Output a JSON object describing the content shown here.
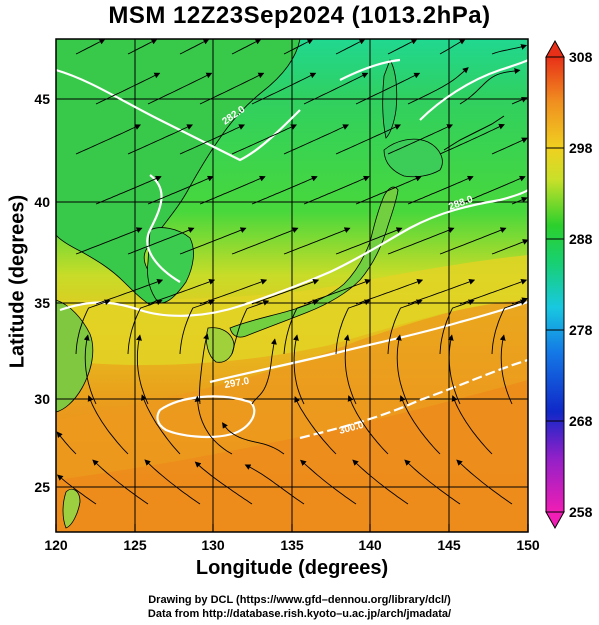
{
  "title": "MSM 12Z23Sep2024 (1013.2hPa)",
  "x_axis": {
    "label": "Longitude (degrees)",
    "ticks": [
      "120",
      "125",
      "130",
      "135",
      "140",
      "145",
      "150"
    ],
    "range": [
      120,
      150
    ]
  },
  "y_axis": {
    "label": "Latitude  (degrees)",
    "ticks": [
      "25",
      "30",
      "35",
      "40",
      "45"
    ],
    "range": [
      22.5,
      47.6
    ]
  },
  "colorbar": {
    "ticks": [
      "258",
      "268",
      "278",
      "288",
      "298",
      "308"
    ],
    "range": [
      258,
      308
    ]
  },
  "contour_labels": [
    "282.0",
    "285.0",
    "288.0",
    "297.0",
    "300.0"
  ],
  "credits": {
    "line1": "Drawing by DCL (https://www.gfd–dennou.org/library/dcl/)",
    "line2": "Data from http://database.rish.kyoto–u.ac.jp/arch/jmadata/"
  },
  "colors": {
    "warm": "#e8901c",
    "mid": "#e0d21c",
    "cool": "#2dc82d",
    "cold": "#20d0a0",
    "land": "#c8c8c8"
  }
}
